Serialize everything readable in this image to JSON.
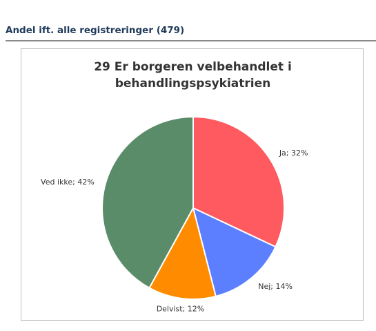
{
  "header": {
    "title": "Andel ift. alle registreringer (479)"
  },
  "chart_data": {
    "type": "pie",
    "title": "29 Er borgeren velbehandlet i behandlingspsykiatrien",
    "values": [
      32,
      14,
      12,
      42
    ],
    "value_labels": [
      "Ja; 32%",
      "Nej; 14%",
      "Delvist; 12%",
      "Ved ikke; 42%"
    ],
    "colors": [
      "#ff5a5f",
      "#5b7fff",
      "#ff8c00",
      "#5b8c6a"
    ]
  }
}
